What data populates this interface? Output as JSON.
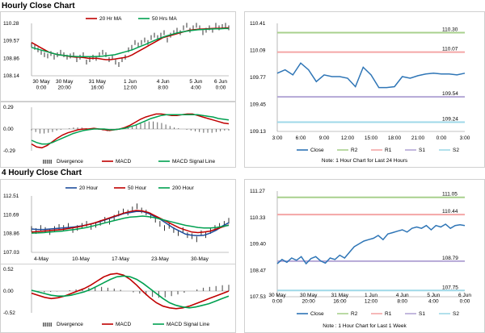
{
  "sections": {
    "hourly_title": "Hourly Close Chart",
    "four_hourly_title": "4 Hourly Close Chart"
  },
  "notes": {
    "hourly_right": "Note: 1 Hour Chart for Last 24 Hours",
    "four_hourly_right": "Note : 1 Hour Chart for Last 1 Week"
  },
  "chart_data": [
    {
      "id": "hourly-price-ma",
      "type": "line",
      "legend": [
        "20 Hr MA",
        "50 Hrs MA"
      ],
      "legend_colors": [
        "#c00000",
        "#00a050"
      ],
      "x_ticks": [
        "30 May\n0:00",
        "30 May\n20:00",
        "31 May\n16:00",
        "1 Jun\n12:00",
        "4 Jun\n8:00",
        "5 Jun\n4:00",
        "6 Jun\n0:00"
      ],
      "y_ticks": [
        "110.28",
        "109.57",
        "108.86",
        "108.14"
      ],
      "ylim": [
        108.14,
        110.28
      ],
      "price": [
        109.4,
        109.3,
        109.2,
        109.1,
        109.0,
        108.95,
        109.05,
        108.9,
        109.0,
        109.1,
        109.0,
        108.9,
        108.95,
        109.0,
        108.8,
        108.9,
        109.0,
        108.7,
        108.8,
        108.9,
        108.85,
        109.0,
        109.1,
        109.0,
        108.8,
        108.9,
        108.7,
        108.6,
        108.8,
        108.9,
        109.2,
        109.3,
        109.5,
        109.4,
        109.5,
        109.6,
        109.5,
        109.7,
        109.8,
        109.7,
        109.8,
        109.9,
        109.6,
        109.8,
        109.9,
        110.0,
        109.9,
        110.1,
        110.2,
        110.0,
        110.1,
        110.2,
        110.1,
        109.9,
        110.0,
        110.1,
        110.0,
        110.2,
        110.1,
        110.15,
        110.2,
        110.1
      ],
      "series": [
        {
          "name": "20 Hr MA",
          "values": [
            109.5,
            109.4,
            109.3,
            109.2,
            109.1,
            109.05,
            109.0,
            108.98,
            108.95,
            108.92,
            108.9,
            108.9,
            108.88,
            108.85,
            108.85,
            108.85,
            108.82,
            108.8,
            108.8,
            108.82,
            108.85,
            108.88,
            108.92,
            109.0,
            109.1,
            109.2,
            109.3,
            109.4,
            109.5,
            109.6,
            109.7,
            109.75,
            109.8,
            109.85,
            109.9,
            109.95,
            110.0,
            110.02,
            110.04,
            110.05,
            110.06,
            110.07,
            110.08,
            110.08,
            110.09,
            110.1
          ]
        },
        {
          "name": "50 Hrs MA",
          "values": [
            109.3,
            109.25,
            109.2,
            109.15,
            109.1,
            109.05,
            109.0,
            108.98,
            108.96,
            108.94,
            108.93,
            108.92,
            108.92,
            108.92,
            108.92,
            108.93,
            108.94,
            108.96,
            108.98,
            109.0,
            109.05,
            109.1,
            109.15,
            109.2,
            109.28,
            109.35,
            109.42,
            109.5,
            109.58,
            109.65,
            109.72,
            109.78,
            109.83,
            109.88,
            109.92,
            109.95,
            109.98,
            110.0,
            110.02,
            110.03,
            110.04,
            110.05,
            110.06,
            110.06,
            110.07,
            110.07
          ]
        }
      ]
    },
    {
      "id": "hourly-macd",
      "type": "line",
      "legend": [
        "Divergence",
        "MACD",
        "MACD Signal Line"
      ],
      "legend_colors": [
        "#555555",
        "#c00000",
        "#00a050"
      ],
      "y_ticks": [
        "0.29",
        "0.00",
        "-0.29"
      ],
      "ylim": [
        -0.29,
        0.29
      ],
      "divergence": [
        -0.02,
        -0.04,
        -0.06,
        -0.06,
        -0.05,
        -0.04,
        -0.02,
        -0.01,
        0.0,
        0.01,
        0.02,
        0.02,
        0.02,
        0.01,
        0.0,
        0.0,
        -0.01,
        -0.02,
        -0.03,
        -0.02,
        -0.01,
        0.0,
        0.01,
        0.02,
        0.03,
        0.05,
        0.07,
        0.09,
        0.1,
        0.1,
        0.09,
        0.08,
        0.06,
        0.04,
        0.02,
        0.01,
        0.0,
        -0.01,
        -0.02,
        -0.03,
        -0.04,
        -0.05,
        -0.05,
        -0.05,
        -0.04,
        -0.03,
        -0.02,
        -0.02
      ],
      "series": [
        {
          "name": "MACD",
          "values": [
            -0.2,
            -0.24,
            -0.25,
            -0.22,
            -0.17,
            -0.12,
            -0.08,
            -0.05,
            -0.03,
            -0.01,
            0.0,
            0.0,
            0.01,
            0.0,
            -0.01,
            -0.02,
            -0.01,
            0.0,
            0.02,
            0.05,
            0.09,
            0.13,
            0.16,
            0.18,
            0.2,
            0.2,
            0.19,
            0.18,
            0.18,
            0.19,
            0.2,
            0.2,
            0.18,
            0.16,
            0.14,
            0.12,
            0.1,
            0.08,
            0.07
          ]
        },
        {
          "name": "MACD Signal Line",
          "values": [
            -0.15,
            -0.18,
            -0.2,
            -0.2,
            -0.18,
            -0.15,
            -0.12,
            -0.09,
            -0.06,
            -0.04,
            -0.02,
            -0.01,
            0.0,
            0.0,
            0.0,
            -0.01,
            -0.01,
            0.0,
            0.01,
            0.03,
            0.05,
            0.08,
            0.11,
            0.14,
            0.16,
            0.18,
            0.19,
            0.19,
            0.19,
            0.19,
            0.19,
            0.19,
            0.19,
            0.18,
            0.17,
            0.16,
            0.14,
            0.13,
            0.12
          ]
        }
      ]
    },
    {
      "id": "hourly-close-24h",
      "type": "line",
      "x_ticks": [
        "3:00",
        "6:00",
        "9:00",
        "12:00",
        "15:00",
        "18:00",
        "21:00",
        "0:00",
        "3:00"
      ],
      "y_ticks": [
        "110.41",
        "110.09",
        "109.77",
        "109.45",
        "109.13"
      ],
      "ylim": [
        109.13,
        110.41
      ],
      "levels": [
        {
          "name": "R2",
          "value": 110.3,
          "label": "110.30",
          "color": "#a8d08d"
        },
        {
          "name": "R1",
          "value": 110.07,
          "label": "110.07",
          "color": "#f4a6a6"
        },
        {
          "name": "S1",
          "value": 109.54,
          "label": "109.54",
          "color": "#b4a7d6"
        },
        {
          "name": "S2",
          "value": 109.24,
          "label": "109.24",
          "color": "#9fd8e8"
        }
      ],
      "legend": [
        "Close",
        "R2",
        "R1",
        "S1",
        "S2"
      ],
      "series": [
        {
          "name": "Close",
          "values": [
            109.82,
            109.86,
            109.8,
            109.94,
            109.86,
            109.72,
            109.8,
            109.78,
            109.78,
            109.76,
            109.66,
            109.89,
            109.8,
            109.65,
            109.65,
            109.66,
            109.78,
            109.76,
            109.79,
            109.81,
            109.82,
            109.81,
            109.81,
            109.8,
            109.82
          ]
        }
      ]
    },
    {
      "id": "four-hourly-price-ma",
      "type": "line",
      "legend": [
        "20 Hour",
        "50 Hour",
        "200 Hour"
      ],
      "legend_colors": [
        "#1f4e9c",
        "#c00000",
        "#00a050"
      ],
      "x_ticks": [
        "4-May",
        "10-May",
        "17-May",
        "23-May",
        "30-May"
      ],
      "y_ticks": [
        "112.51",
        "110.69",
        "108.86",
        "107.03"
      ],
      "ylim": [
        107.03,
        112.51
      ],
      "price": [
        109.3,
        109.1,
        109.4,
        109.2,
        109.0,
        109.3,
        109.5,
        109.4,
        109.6,
        109.2,
        109.4,
        109.6,
        109.8,
        109.5,
        109.7,
        109.9,
        110.2,
        110.0,
        110.4,
        110.8,
        111.0,
        110.9,
        111.2,
        111.5,
        111.1,
        110.9,
        110.6,
        110.2,
        109.8,
        109.4,
        109.6,
        109.2,
        108.9,
        109.2,
        108.7,
        108.6,
        108.3,
        108.9,
        108.7,
        109.1,
        109.4,
        109.6,
        109.8,
        110.1
      ],
      "series": [
        {
          "name": "20 Hour",
          "values": [
            109.3,
            109.25,
            109.25,
            109.3,
            109.35,
            109.4,
            109.45,
            109.5,
            109.6,
            109.7,
            109.85,
            110.0,
            110.2,
            110.4,
            110.6,
            110.8,
            110.9,
            111.0,
            111.0,
            110.8,
            110.5,
            110.2,
            109.8,
            109.4,
            109.1,
            108.8,
            108.7,
            108.65,
            108.7,
            108.9,
            109.2,
            109.6,
            109.9
          ]
        },
        {
          "name": "50 Hour",
          "values": [
            109.0,
            109.05,
            109.1,
            109.15,
            109.2,
            109.25,
            109.35,
            109.45,
            109.55,
            109.7,
            109.85,
            110.05,
            110.25,
            110.45,
            110.65,
            110.85,
            111.0,
            111.1,
            111.05,
            110.9,
            110.6,
            110.3,
            110.0,
            109.7,
            109.4,
            109.2,
            109.0,
            108.95,
            109.0,
            109.1,
            109.3,
            109.5,
            109.7
          ]
        },
        {
          "name": "200 Hour",
          "values": [
            108.9,
            108.92,
            108.95,
            109.0,
            109.05,
            109.1,
            109.18,
            109.25,
            109.35,
            109.45,
            109.6,
            109.75,
            109.9,
            110.05,
            110.2,
            110.35,
            110.45,
            110.5,
            110.55,
            110.5,
            110.4,
            110.25,
            110.1,
            109.95,
            109.8,
            109.65,
            109.55,
            109.45,
            109.4,
            109.4,
            109.45,
            109.55,
            109.65
          ]
        }
      ]
    },
    {
      "id": "four-hourly-macd",
      "type": "line",
      "legend": [
        "Divergence",
        "MACD",
        "MACD Signal Line"
      ],
      "legend_colors": [
        "#555555",
        "#c00000",
        "#00a050"
      ],
      "y_ticks": [
        "0.52",
        "0.00",
        "-0.52"
      ],
      "ylim": [
        -0.52,
        0.52
      ],
      "divergence": [
        0.0,
        -0.02,
        -0.03,
        -0.02,
        -0.01,
        0.0,
        0.02,
        0.04,
        0.06,
        0.08,
        0.09,
        0.1,
        0.08,
        0.06,
        0.03,
        0.0,
        -0.03,
        -0.06,
        -0.1,
        -0.14,
        -0.16,
        -0.15,
        -0.12,
        -0.08,
        -0.04,
        0.0,
        0.04,
        0.08,
        0.1,
        0.12,
        0.14,
        0.15
      ],
      "series": [
        {
          "name": "MACD",
          "values": [
            -0.05,
            -0.1,
            -0.15,
            -0.18,
            -0.16,
            -0.12,
            -0.06,
            0.0,
            0.06,
            0.14,
            0.24,
            0.34,
            0.4,
            0.42,
            0.38,
            0.28,
            0.14,
            -0.02,
            -0.16,
            -0.28,
            -0.36,
            -0.4,
            -0.42,
            -0.4,
            -0.36,
            -0.3,
            -0.24,
            -0.18,
            -0.12,
            -0.06,
            0.0
          ]
        },
        {
          "name": "MACD Signal Line",
          "values": [
            0.02,
            -0.02,
            -0.06,
            -0.1,
            -0.12,
            -0.12,
            -0.1,
            -0.06,
            -0.02,
            0.04,
            0.12,
            0.2,
            0.28,
            0.34,
            0.36,
            0.34,
            0.28,
            0.18,
            0.06,
            -0.06,
            -0.18,
            -0.28,
            -0.34,
            -0.38,
            -0.4,
            -0.38,
            -0.34,
            -0.3,
            -0.24,
            -0.18,
            -0.12
          ]
        }
      ]
    },
    {
      "id": "four-hourly-close-1w",
      "type": "line",
      "x_ticks": [
        "30 May\n0:00",
        "30 May\n20:00",
        "31 May\n16:00",
        "1 Jun\n12:00",
        "4 Jun\n8:00",
        "5 Jun\n4:00",
        "6 Jun\n0:00"
      ],
      "y_ticks": [
        "111.27",
        "110.33",
        "109.40",
        "108.47",
        "107.53"
      ],
      "ylim": [
        107.53,
        111.27
      ],
      "levels": [
        {
          "name": "R2",
          "value": 111.05,
          "label": "111.05",
          "color": "#a8d08d"
        },
        {
          "name": "R1",
          "value": 110.44,
          "label": "110.44",
          "color": "#f4a6a6"
        },
        {
          "name": "S1",
          "value": 108.79,
          "label": "108.79",
          "color": "#b4a7d6"
        },
        {
          "name": "S2",
          "value": 107.75,
          "label": "107.75",
          "color": "#9fd8e8"
        }
      ],
      "legend": [
        "Close",
        "R2",
        "R1",
        "S1",
        "S2"
      ],
      "series": [
        {
          "name": "Close",
          "values": [
            108.7,
            108.85,
            108.75,
            108.9,
            108.82,
            108.95,
            108.7,
            108.88,
            108.95,
            108.8,
            108.72,
            108.9,
            108.85,
            109.0,
            108.9,
            109.1,
            109.3,
            109.4,
            109.5,
            109.55,
            109.6,
            109.7,
            109.55,
            109.75,
            109.8,
            109.85,
            109.9,
            109.82,
            109.95,
            110.0,
            109.95,
            110.05,
            109.9,
            110.05,
            110.0,
            110.1,
            109.95,
            110.05,
            110.08,
            110.05
          ]
        }
      ]
    }
  ]
}
